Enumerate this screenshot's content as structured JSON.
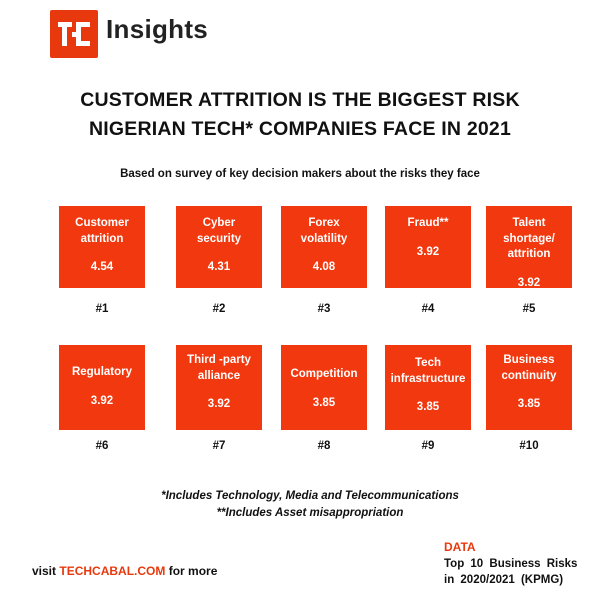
{
  "brand": {
    "logo_text": "tc",
    "name": "Insights",
    "accent": "#e8380d"
  },
  "headline": {
    "line1": "CUSTOMER ATTRITION IS THE BIGGEST RISK",
    "line2": "NIGERIAN TECH* COMPANIES FACE IN 2021"
  },
  "subtitle": "Based on survey of key decision makers about the risks they face",
  "risks": [
    {
      "label": "Customer\nattrition",
      "value": "4.54",
      "rank": "#1"
    },
    {
      "label": "Cyber\nsecurity",
      "value": "4.31",
      "rank": "#2"
    },
    {
      "label": "Forex\nvolatility",
      "value": "4.08",
      "rank": "#3"
    },
    {
      "label": "Fraud**",
      "value": "3.92",
      "rank": "#4"
    },
    {
      "label": "Talent\nshortage/\nattrition",
      "value": "3.92",
      "rank": "#5"
    },
    {
      "label": "Regulatory",
      "value": "3.92",
      "rank": "#6"
    },
    {
      "label": "Third -party\nalliance",
      "value": "3.92",
      "rank": "#7"
    },
    {
      "label": "Competition",
      "value": "3.85",
      "rank": "#8"
    },
    {
      "label": "Tech\ninfrastructure",
      "value": "3.85",
      "rank": "#9"
    },
    {
      "label": "Business\ncontinuity",
      "value": "3.85",
      "rank": "#10"
    }
  ],
  "notes": {
    "line1": "*Includes Technology, Media and Telecommunications",
    "line2": "**Includes Asset misappropriation"
  },
  "footer": {
    "visit_prefix": "visit ",
    "site": "TECHCABAL.COM",
    "visit_suffix": " for more",
    "data_label": "DATA",
    "source_line1": "Top 10 Business Risks",
    "source_line2": "in 2020/2021 (KPMG)"
  }
}
